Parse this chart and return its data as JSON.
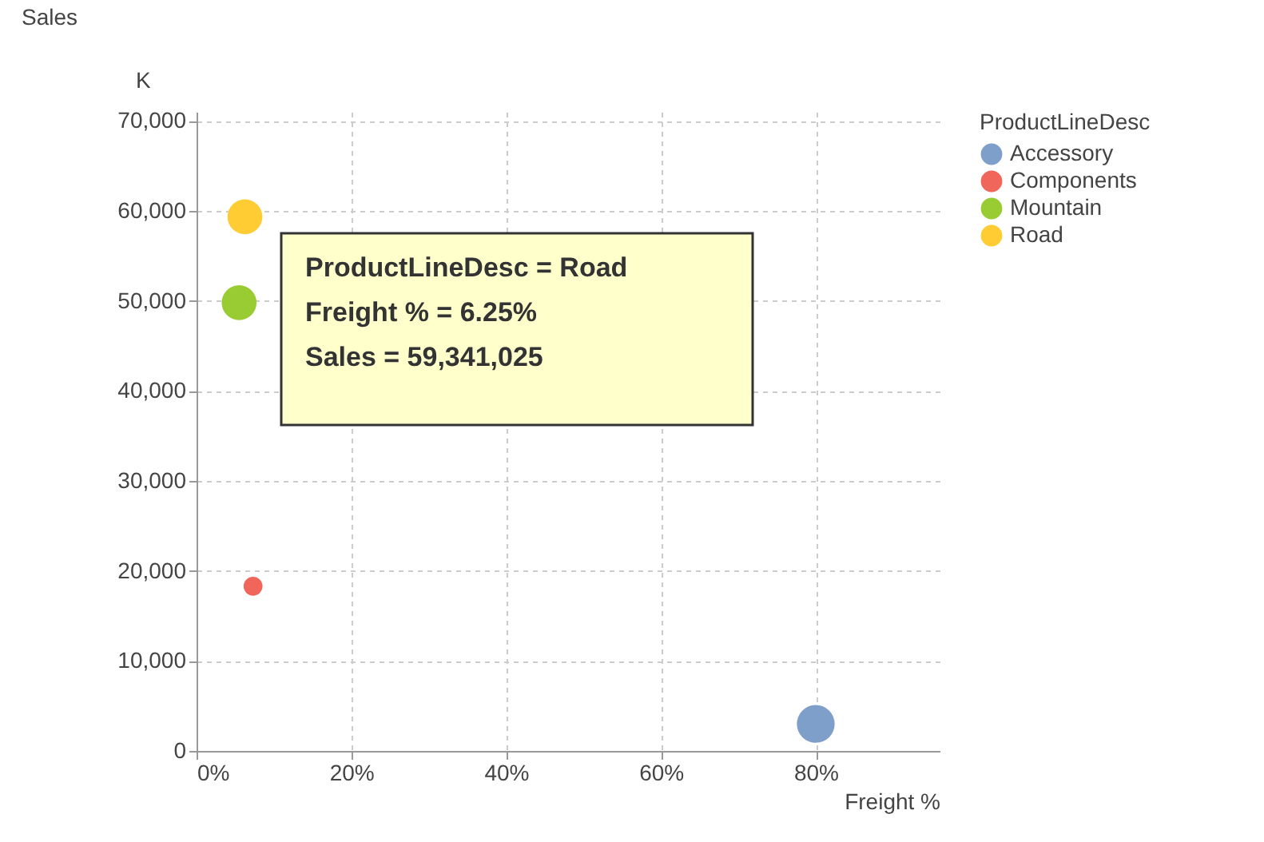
{
  "chart_data": {
    "type": "bubble",
    "xlabel": "Freight %",
    "ylabel": "Sales",
    "legend_title": "ProductLineDesc",
    "legend": "top right",
    "grid": true,
    "marker": "circle",
    "xlim": [
      0,
      96
    ],
    "xticks": [
      {
        "value": 0,
        "label": "0%"
      },
      {
        "value": 20,
        "label": "20%"
      },
      {
        "value": 40,
        "label": "40%"
      },
      {
        "value": 60,
        "label": "60%"
      },
      {
        "value": 80,
        "label": "80%"
      }
    ],
    "ylim": [
      0,
      71000
    ],
    "yticks": [
      0,
      {
        "value": 10000,
        "label": "10,000"
      },
      {
        "value": 20000,
        "label": "20,000"
      },
      {
        "value": 30000,
        "label": "30,000"
      },
      {
        "value": 40000,
        "label": "40,000"
      },
      {
        "value": 50000,
        "label": "50,000"
      },
      {
        "value": 60000,
        "label": "60,000"
      },
      {
        "value": 70000,
        "label": "70,000"
      }
    ],
    "annotations": [
      "K",
      "ProductLineDesc = Road\nFreight % = 6.25%\nSales = 59,341,025"
    ],
    "series": [
      {
        "name": "Accessory",
        "color": "#7f9fcb",
        "x": [
          80
        ],
        "values": [
          3000
        ],
        "sizes": [
          1
        ]
      },
      {
        "name": "Components",
        "color": "#f0665a",
        "x": [
          7.3
        ],
        "values": [
          18300
        ],
        "sizes": [
          0.25
        ]
      },
      {
        "name": "Mountain",
        "color": "#99cc33",
        "x": [
          5.5
        ],
        "values": [
          49800
        ],
        "sizes": [
          0.85
        ]
      },
      {
        "name": "Road",
        "color": "#ffcc33",
        "x": [
          6.25
        ],
        "values": [
          59341
        ],
        "sizes": [
          0.85
        ]
      }
    ]
  }
}
